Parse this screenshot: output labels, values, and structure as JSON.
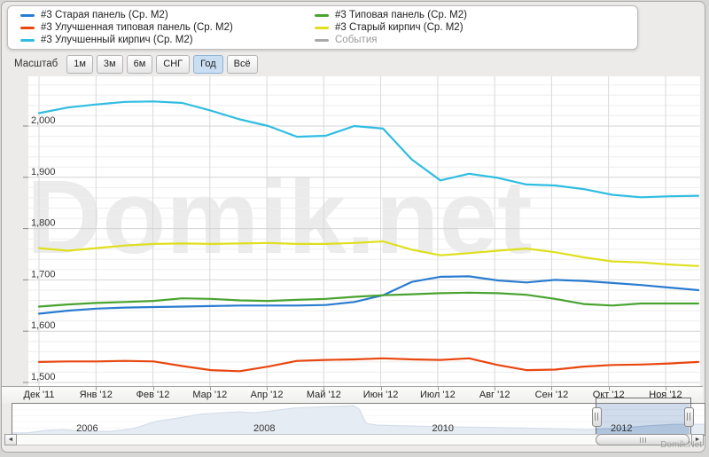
{
  "watermark": "Domik.net",
  "brand": "Domik.Net",
  "legend": {
    "items": [
      {
        "label": "#3 Старая панель (Ср. М2)",
        "color": "#2a7cd0",
        "muted": false
      },
      {
        "label": "#3 Улучшенная типовая панель (Ср. М2)",
        "color": "#e8470f",
        "muted": false
      },
      {
        "label": "#3 Улучшенный кирпич (Ср. М2)",
        "color": "#2fbde1",
        "muted": false
      },
      {
        "label": "#3 Типовая панель (Ср. М2)",
        "color": "#49a32f",
        "muted": false
      },
      {
        "label": "#3 Старый кирпич (Ср. М2)",
        "color": "#dedf1e",
        "muted": false
      },
      {
        "label": "События",
        "color": "#aaaaaa",
        "muted": true
      }
    ]
  },
  "scale": {
    "label": "Масштаб",
    "buttons": [
      {
        "label": "1м",
        "active": false
      },
      {
        "label": "3м",
        "active": false
      },
      {
        "label": "6м",
        "active": false
      },
      {
        "label": "СНГ",
        "active": false
      },
      {
        "label": "Год",
        "active": true
      },
      {
        "label": "Всё",
        "active": false
      }
    ]
  },
  "chart_data": {
    "type": "line",
    "title": "",
    "xlabel": "",
    "ylabel": "",
    "x_note": "24 semi-monthly samples, Dec 2011 - mid Nov 2012",
    "x_tick_labels": [
      "Дек '11",
      "Янв '12",
      "Фев '12",
      "Мар '12",
      "Апр '12",
      "Май '12",
      "Июн '12",
      "Июл '12",
      "Авг '12",
      "Сен '12",
      "Окт '12",
      "Ноя '12"
    ],
    "ylim": [
      1490,
      2090
    ],
    "y_major_ticks": [
      1500,
      1600,
      1700,
      1800,
      1900,
      2000
    ],
    "y_tick_labels": [
      "1,500",
      "1,600",
      "1,700",
      "1,800",
      "1,900",
      "2,000"
    ],
    "y_minor_step": 20,
    "grid": true,
    "legend_position": "top",
    "series": [
      {
        "name": "#3 Старая панель (Ср. М2)",
        "color": "#2a7cd0",
        "values": [
          1634,
          1640,
          1644,
          1646,
          1647,
          1648,
          1649,
          1650,
          1650,
          1650,
          1651,
          1657,
          1670,
          1696,
          1706,
          1707,
          1699,
          1695,
          1700,
          1698,
          1694,
          1690,
          1685,
          1680
        ]
      },
      {
        "name": "#3 Улучшенная типовая панель (Ср. М2)",
        "color": "#e8470f",
        "values": [
          1540,
          1541,
          1541,
          1542,
          1541,
          1532,
          1524,
          1522,
          1531,
          1542,
          1544,
          1545,
          1547,
          1545,
          1544,
          1547,
          1534,
          1524,
          1525,
          1531,
          1534,
          1535,
          1537,
          1540
        ]
      },
      {
        "name": "#3 Улучшенный кирпич (Ср. М2)",
        "color": "#2fbde1",
        "values": [
          2025,
          2036,
          2042,
          2047,
          2048,
          2045,
          2030,
          2013,
          2000,
          1979,
          1981,
          2000,
          1995,
          1935,
          1894,
          1907,
          1899,
          1886,
          1884,
          1877,
          1866,
          1861,
          1863,
          1864
        ]
      },
      {
        "name": "#3 Типовая панель (Ср. М2)",
        "color": "#49a32f",
        "values": [
          1648,
          1652,
          1655,
          1657,
          1659,
          1664,
          1663,
          1660,
          1659,
          1661,
          1663,
          1667,
          1670,
          1672,
          1674,
          1675,
          1674,
          1671,
          1663,
          1653,
          1650,
          1654,
          1654,
          1654
        ]
      },
      {
        "name": "#3 Старый кирпич (Ср. М2)",
        "color": "#dedf1e",
        "values": [
          1762,
          1757,
          1762,
          1767,
          1770,
          1771,
          1770,
          1771,
          1772,
          1770,
          1770,
          1772,
          1775,
          1759,
          1748,
          1752,
          1757,
          1761,
          1754,
          1744,
          1736,
          1734,
          1730,
          1727
        ]
      },
      {
        "name": "События",
        "color": "#aaaaaa",
        "values": []
      }
    ],
    "navigator": {
      "year_labels": [
        {
          "label": "2006",
          "x": 0.108
        },
        {
          "label": "2008",
          "x": 0.364
        },
        {
          "label": "2010",
          "x": 0.622
        },
        {
          "label": "2012",
          "x": 0.88
        }
      ],
      "area_fill": "#d2dce9",
      "area_line": "#b2c3da",
      "selection": {
        "from": 0.844,
        "to": 0.978
      },
      "points": [
        [
          0.0,
          0.06
        ],
        [
          0.022,
          0.06
        ],
        [
          0.047,
          0.14
        ],
        [
          0.073,
          0.17
        ],
        [
          0.105,
          0.11
        ],
        [
          0.143,
          0.11
        ],
        [
          0.175,
          0.2
        ],
        [
          0.207,
          0.43
        ],
        [
          0.239,
          0.54
        ],
        [
          0.271,
          0.66
        ],
        [
          0.303,
          0.71
        ],
        [
          0.329,
          0.74
        ],
        [
          0.348,
          0.71
        ],
        [
          0.374,
          0.77
        ],
        [
          0.406,
          0.86
        ],
        [
          0.438,
          0.89
        ],
        [
          0.464,
          0.91
        ],
        [
          0.493,
          0.94
        ],
        [
          0.501,
          0.83
        ],
        [
          0.511,
          0.37
        ],
        [
          0.527,
          0.31
        ],
        [
          0.566,
          0.29
        ],
        [
          0.623,
          0.26
        ],
        [
          0.7,
          0.23
        ],
        [
          0.777,
          0.2
        ],
        [
          0.828,
          0.17
        ],
        [
          0.867,
          0.2
        ],
        [
          0.918,
          0.29
        ],
        [
          0.956,
          0.34
        ],
        [
          1.0,
          0.34
        ]
      ]
    }
  }
}
